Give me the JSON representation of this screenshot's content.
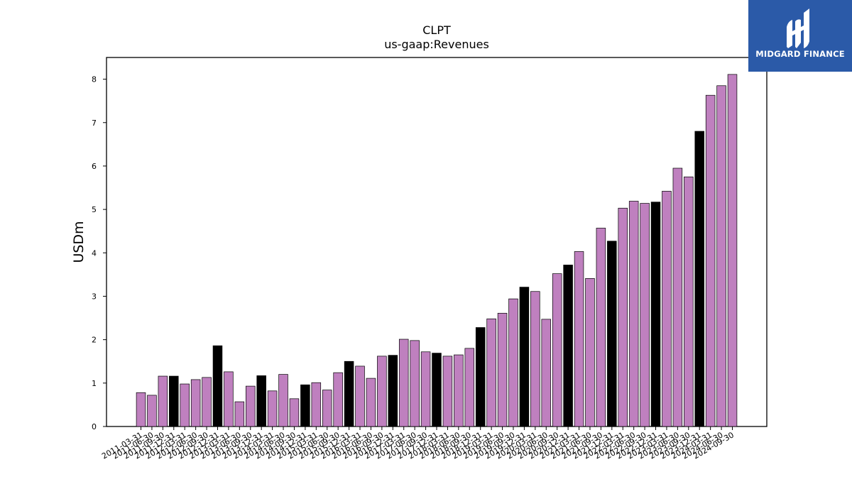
{
  "logo": {
    "text": "MIDGARD FINANCE"
  },
  "chart_data": {
    "type": "bar",
    "title": "CLPT",
    "subtitle": "us-gaap:Revenues",
    "ylabel": "USDm",
    "xlabel": "",
    "ylim": [
      0,
      8.5
    ],
    "yticks": [
      0,
      1,
      2,
      3,
      4,
      5,
      6,
      7,
      8
    ],
    "grid": false,
    "colors": {
      "quarter": "#bf80bf",
      "annual": "#000000",
      "edge": "#000000"
    },
    "categories": [
      "2011-03-31",
      "2011-06-30",
      "2011-09-30",
      "2011-12-31",
      "2012-03-31",
      "2012-06-30",
      "2012-09-30",
      "2012-12-31",
      "2013-03-31",
      "2013-06-30",
      "2013-09-30",
      "2013-12-31",
      "2014-03-31",
      "2014-06-30",
      "2014-09-30",
      "2014-12-31",
      "2015-03-31",
      "2015-06-30",
      "2015-09-30",
      "2015-12-31",
      "2016-03-31",
      "2016-06-30",
      "2016-09-30",
      "2016-12-31",
      "2017-03-31",
      "2017-06-30",
      "2017-09-30",
      "2017-12-31",
      "2018-03-31",
      "2018-06-30",
      "2018-09-30",
      "2018-12-31",
      "2019-03-31",
      "2019-06-30",
      "2019-09-30",
      "2019-12-31",
      "2020-03-31",
      "2020-06-30",
      "2020-09-30",
      "2020-12-31",
      "2021-03-31",
      "2021-06-30",
      "2021-09-30",
      "2021-12-31",
      "2022-03-31",
      "2022-06-30",
      "2022-09-30",
      "2022-12-31",
      "2023-03-31",
      "2023-06-30",
      "2023-09-30",
      "2023-12-31",
      "2024-03-31",
      "2024-06-30",
      "2024-09-30"
    ],
    "values": [
      0.78,
      0.72,
      1.16,
      1.16,
      0.98,
      1.08,
      1.13,
      1.86,
      1.26,
      0.57,
      0.93,
      1.17,
      0.82,
      1.2,
      0.64,
      0.96,
      1.01,
      0.84,
      1.24,
      1.5,
      1.39,
      1.11,
      1.62,
      1.64,
      2.01,
      1.98,
      1.72,
      1.69,
      1.62,
      1.65,
      1.8,
      2.28,
      2.48,
      2.61,
      2.94,
      3.21,
      3.11,
      2.47,
      3.52,
      3.72,
      4.03,
      3.41,
      4.57,
      4.27,
      5.03,
      5.19,
      5.14,
      5.17,
      5.42,
      5.95,
      5.75,
      6.8,
      7.63,
      7.85,
      8.11
    ],
    "annual_flags": [
      false,
      false,
      false,
      true,
      false,
      false,
      false,
      true,
      false,
      false,
      false,
      true,
      false,
      false,
      false,
      true,
      false,
      false,
      false,
      true,
      false,
      false,
      false,
      true,
      false,
      false,
      false,
      true,
      false,
      false,
      false,
      true,
      false,
      false,
      false,
      true,
      false,
      false,
      false,
      true,
      false,
      false,
      false,
      true,
      false,
      false,
      false,
      true,
      false,
      false,
      false,
      true,
      false,
      false,
      false
    ]
  }
}
